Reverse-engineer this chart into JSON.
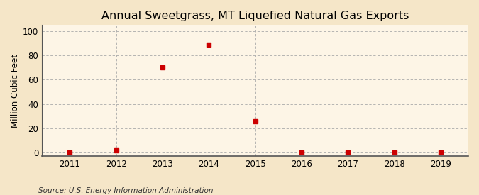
{
  "title": "Annual Sweetgrass, MT Liquefied Natural Gas Exports",
  "ylabel": "Million Cubic Feet",
  "source": "Source: U.S. Energy Information Administration",
  "years": [
    2011,
    2012,
    2013,
    2014,
    2015,
    2016,
    2017,
    2018,
    2019
  ],
  "values": [
    0,
    1.5,
    70,
    89,
    26,
    0,
    0,
    0,
    0
  ],
  "xlim": [
    2010.4,
    2019.6
  ],
  "ylim": [
    -3,
    105
  ],
  "yticks": [
    0,
    20,
    40,
    60,
    80,
    100
  ],
  "xticks": [
    2011,
    2012,
    2013,
    2014,
    2015,
    2016,
    2017,
    2018,
    2019
  ],
  "outer_bg": "#f5e6c8",
  "plot_bg": "#fdf5e6",
  "marker_color": "#cc0000",
  "grid_color": "#aaaaaa",
  "spine_color": "#555555",
  "title_fontsize": 11.5,
  "tick_fontsize": 8.5,
  "ylabel_fontsize": 8.5,
  "source_fontsize": 7.5,
  "marker_size": 4
}
